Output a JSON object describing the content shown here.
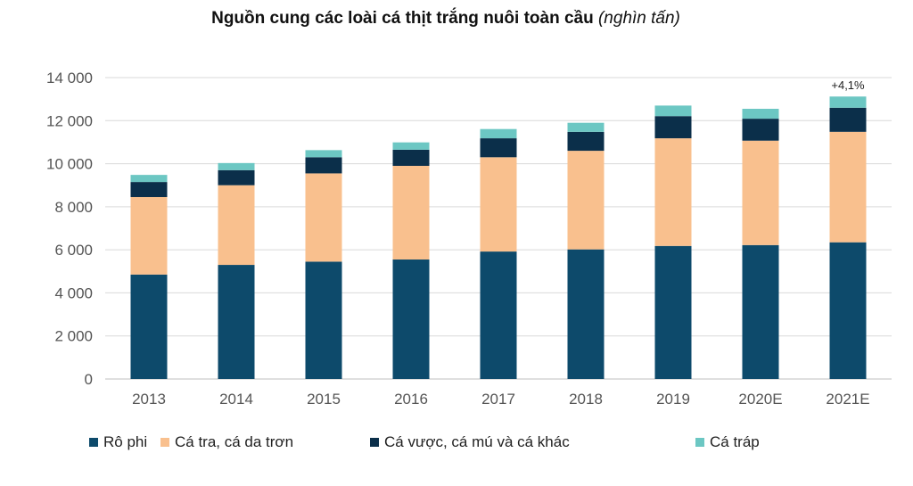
{
  "title": {
    "main": "Nguồn cung các loài cá thịt trắng nuôi toàn cầu",
    "unit": "(nghìn tấn)"
  },
  "chart_data": {
    "type": "bar",
    "stacked": true,
    "categories": [
      "2013",
      "2014",
      "2015",
      "2016",
      "2017",
      "2018",
      "2019",
      "2020E",
      "2021E"
    ],
    "series": [
      {
        "name": "Rô phi",
        "color": "#0d4a6b",
        "values": [
          4850,
          5300,
          5450,
          5550,
          5920,
          6020,
          6180,
          6220,
          6350
        ]
      },
      {
        "name": "Cá tra, cá da trơn",
        "color": "#f9c08e",
        "values": [
          3600,
          3700,
          4100,
          4350,
          4380,
          4580,
          5000,
          4850,
          5130
        ]
      },
      {
        "name": "Cá vược, cá mú và cá khác",
        "color": "#0b2f4a",
        "values": [
          700,
          700,
          750,
          750,
          880,
          880,
          1030,
          1020,
          1120
        ]
      },
      {
        "name": "Cá tráp",
        "color": "#6cc7c3",
        "values": [
          330,
          330,
          330,
          340,
          430,
          420,
          490,
          460,
          520
        ]
      }
    ],
    "y_ticks": [
      "0",
      "2 000",
      "4 000",
      "6 000",
      "8 000",
      "10 000",
      "12 000",
      "14 000"
    ],
    "ylim": [
      0,
      14000
    ],
    "grid": true,
    "legend_position": "bottom",
    "annotations": [
      {
        "category": "2021E",
        "text": "+4,1%"
      }
    ]
  }
}
